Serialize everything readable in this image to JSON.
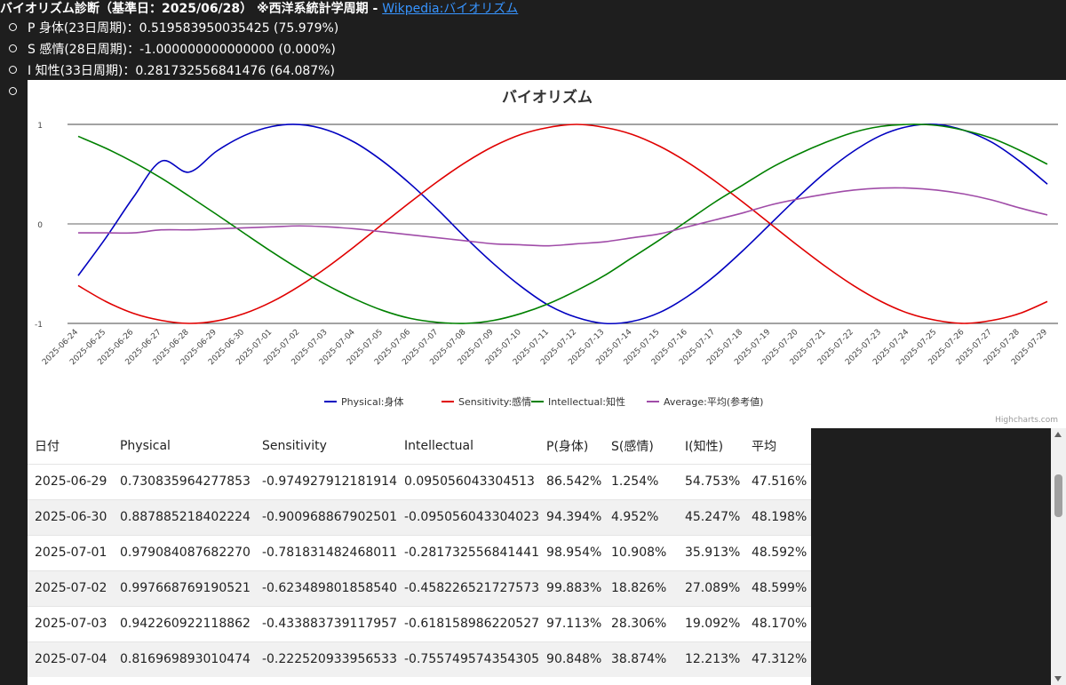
{
  "header": {
    "title": "バイオリズム診断（基準日：2025/06/28） ※西洋系統計学周期 - ",
    "link": "Wikpedia:バイオリズム"
  },
  "stats": [
    "P 身体(23日周期)：0.519583950035425 (75.979%)",
    "S 感情(28日周期)：-1.000000000000000 (0.000%)",
    "I 知性(33日周期)：0.281732556841476 (64.087%)"
  ],
  "colors": {
    "physical": "#0000c0",
    "sensitivity": "#e00000",
    "intellectual": "#008000",
    "average": "#a04ca8"
  },
  "chart_data": {
    "type": "line",
    "title": "バイオリズム",
    "credit": "Highcharts.com",
    "ylim": [
      -1,
      1
    ],
    "yticks": [
      "1",
      "0",
      "-1"
    ],
    "legend_position": "bottom",
    "x": [
      "2025-06-24",
      "2025-06-25",
      "2025-06-26",
      "2025-06-27",
      "2025-06-28",
      "2025-06-29",
      "2025-06-30",
      "2025-07-01",
      "2025-07-02",
      "2025-07-03",
      "2025-07-04",
      "2025-07-05",
      "2025-07-06",
      "2025-07-07",
      "2025-07-08",
      "2025-07-09",
      "2025-07-10",
      "2025-07-11",
      "2025-07-12",
      "2025-07-13",
      "2025-07-14",
      "2025-07-15",
      "2025-07-16",
      "2025-07-17",
      "2025-07-18",
      "2025-07-19",
      "2025-07-20",
      "2025-07-21",
      "2025-07-22",
      "2025-07-23",
      "2025-07-24",
      "2025-07-25",
      "2025-07-26",
      "2025-07-27",
      "2025-07-28",
      "2025-07-29"
    ],
    "series": [
      {
        "name": "Physical:身体",
        "values": [
          -0.52,
          -0.14,
          0.27,
          0.63,
          0.52,
          0.731,
          0.888,
          0.979,
          0.998,
          0.942,
          0.817,
          0.63,
          0.4,
          0.14,
          -0.14,
          -0.4,
          -0.63,
          -0.82,
          -0.94,
          -1.0,
          -0.98,
          -0.89,
          -0.73,
          -0.52,
          -0.27,
          0.0,
          0.27,
          0.52,
          0.73,
          0.89,
          0.98,
          1.0,
          0.94,
          0.82,
          0.63,
          0.4
        ]
      },
      {
        "name": "Sensitivity:感情",
        "values": [
          -0.62,
          -0.78,
          -0.9,
          -0.97,
          -1.0,
          -0.975,
          -0.901,
          -0.782,
          -0.623,
          -0.434,
          -0.223,
          0.0,
          0.22,
          0.43,
          0.62,
          0.78,
          0.9,
          0.97,
          1.0,
          0.97,
          0.9,
          0.78,
          0.62,
          0.43,
          0.22,
          0.0,
          -0.22,
          -0.43,
          -0.62,
          -0.78,
          -0.9,
          -0.97,
          -1.0,
          -0.97,
          -0.9,
          -0.78
        ]
      },
      {
        "name": "Intellectual:知性",
        "values": [
          0.88,
          0.76,
          0.62,
          0.46,
          0.28,
          0.095,
          -0.095,
          -0.282,
          -0.458,
          -0.618,
          -0.756,
          -0.87,
          -0.95,
          -0.99,
          -1.0,
          -0.97,
          -0.9,
          -0.8,
          -0.67,
          -0.52,
          -0.34,
          -0.16,
          0.03,
          0.22,
          0.39,
          0.56,
          0.7,
          0.82,
          0.92,
          0.98,
          1.0,
          0.99,
          0.94,
          0.86,
          0.74,
          0.6
        ]
      },
      {
        "name": "Average:平均(参考値)",
        "values": [
          -0.09,
          -0.09,
          -0.09,
          -0.06,
          -0.06,
          -0.05,
          -0.04,
          -0.03,
          -0.02,
          -0.03,
          -0.05,
          -0.08,
          -0.11,
          -0.14,
          -0.17,
          -0.2,
          -0.21,
          -0.22,
          -0.2,
          -0.18,
          -0.14,
          -0.1,
          -0.03,
          0.04,
          0.11,
          0.19,
          0.25,
          0.3,
          0.34,
          0.36,
          0.36,
          0.34,
          0.3,
          0.24,
          0.16,
          0.09
        ]
      }
    ]
  },
  "table": {
    "headers": [
      "日付",
      "Physical",
      "Sensitivity",
      "Intellectual",
      "P(身体)",
      "S(感情)",
      "I(知性)",
      "平均"
    ],
    "rows": [
      [
        "2025-06-29",
        "0.730835964277853",
        "-0.974927912181914",
        "0.095056043304513",
        "86.542%",
        "1.254%",
        "54.753%",
        "47.516%"
      ],
      [
        "2025-06-30",
        "0.887885218402224",
        "-0.900968867902501",
        "-0.095056043304023",
        "94.394%",
        "4.952%",
        "45.247%",
        "48.198%"
      ],
      [
        "2025-07-01",
        "0.979084087682270",
        "-0.781831482468011",
        "-0.281732556841441",
        "98.954%",
        "10.908%",
        "35.913%",
        "48.592%"
      ],
      [
        "2025-07-02",
        "0.997668769190521",
        "-0.623489801858540",
        "-0.458226521727573",
        "99.883%",
        "18.826%",
        "27.089%",
        "48.599%"
      ],
      [
        "2025-07-03",
        "0.942260922118862",
        "-0.433883739117957",
        "-0.618158986220527",
        "97.113%",
        "28.306%",
        "19.092%",
        "48.170%"
      ],
      [
        "2025-07-04",
        "0.816969893010474",
        "-0.222520933956533",
        "-0.755749574354305",
        "90.848%",
        "38.874%",
        "12.213%",
        "47.312%"
      ]
    ]
  }
}
